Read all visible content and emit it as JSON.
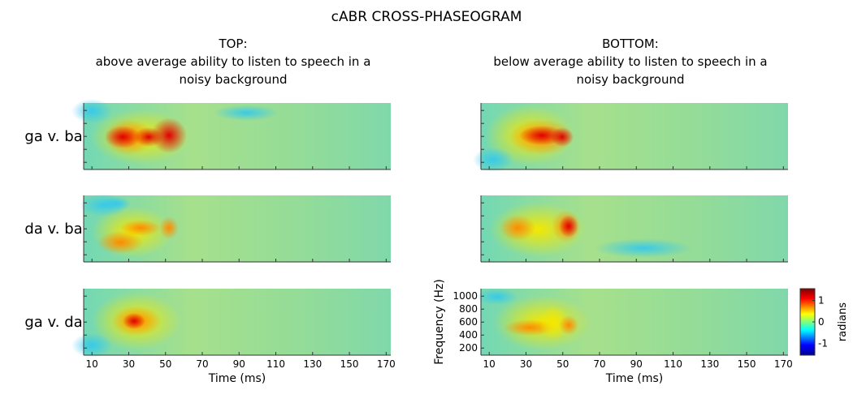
{
  "title": "cABR CROSS-PHASEOGRAM",
  "columns": [
    {
      "lines": [
        "TOP:",
        "above average ability to listen to speech in a",
        "noisy background"
      ]
    },
    {
      "lines": [
        "BOTTOM:",
        "below average ability to listen to speech in a",
        "noisy background"
      ]
    }
  ],
  "rows": [
    "ga v. ba",
    "da v. ba",
    "ga v. da"
  ],
  "x_axis": {
    "label": "Time (ms)",
    "lim": [
      5.5,
      172.5
    ],
    "ticks": [
      10,
      30,
      50,
      70,
      90,
      110,
      130,
      150,
      170
    ]
  },
  "y_axis": {
    "label": "Frequency (Hz)",
    "lim": [
      90,
      1115
    ],
    "ticks": [
      200,
      400,
      600,
      800,
      1000
    ]
  },
  "colorbar": {
    "label": "radians",
    "lim": [
      -1.55,
      1.55
    ],
    "ticks": [
      1,
      0,
      -1
    ]
  }
}
